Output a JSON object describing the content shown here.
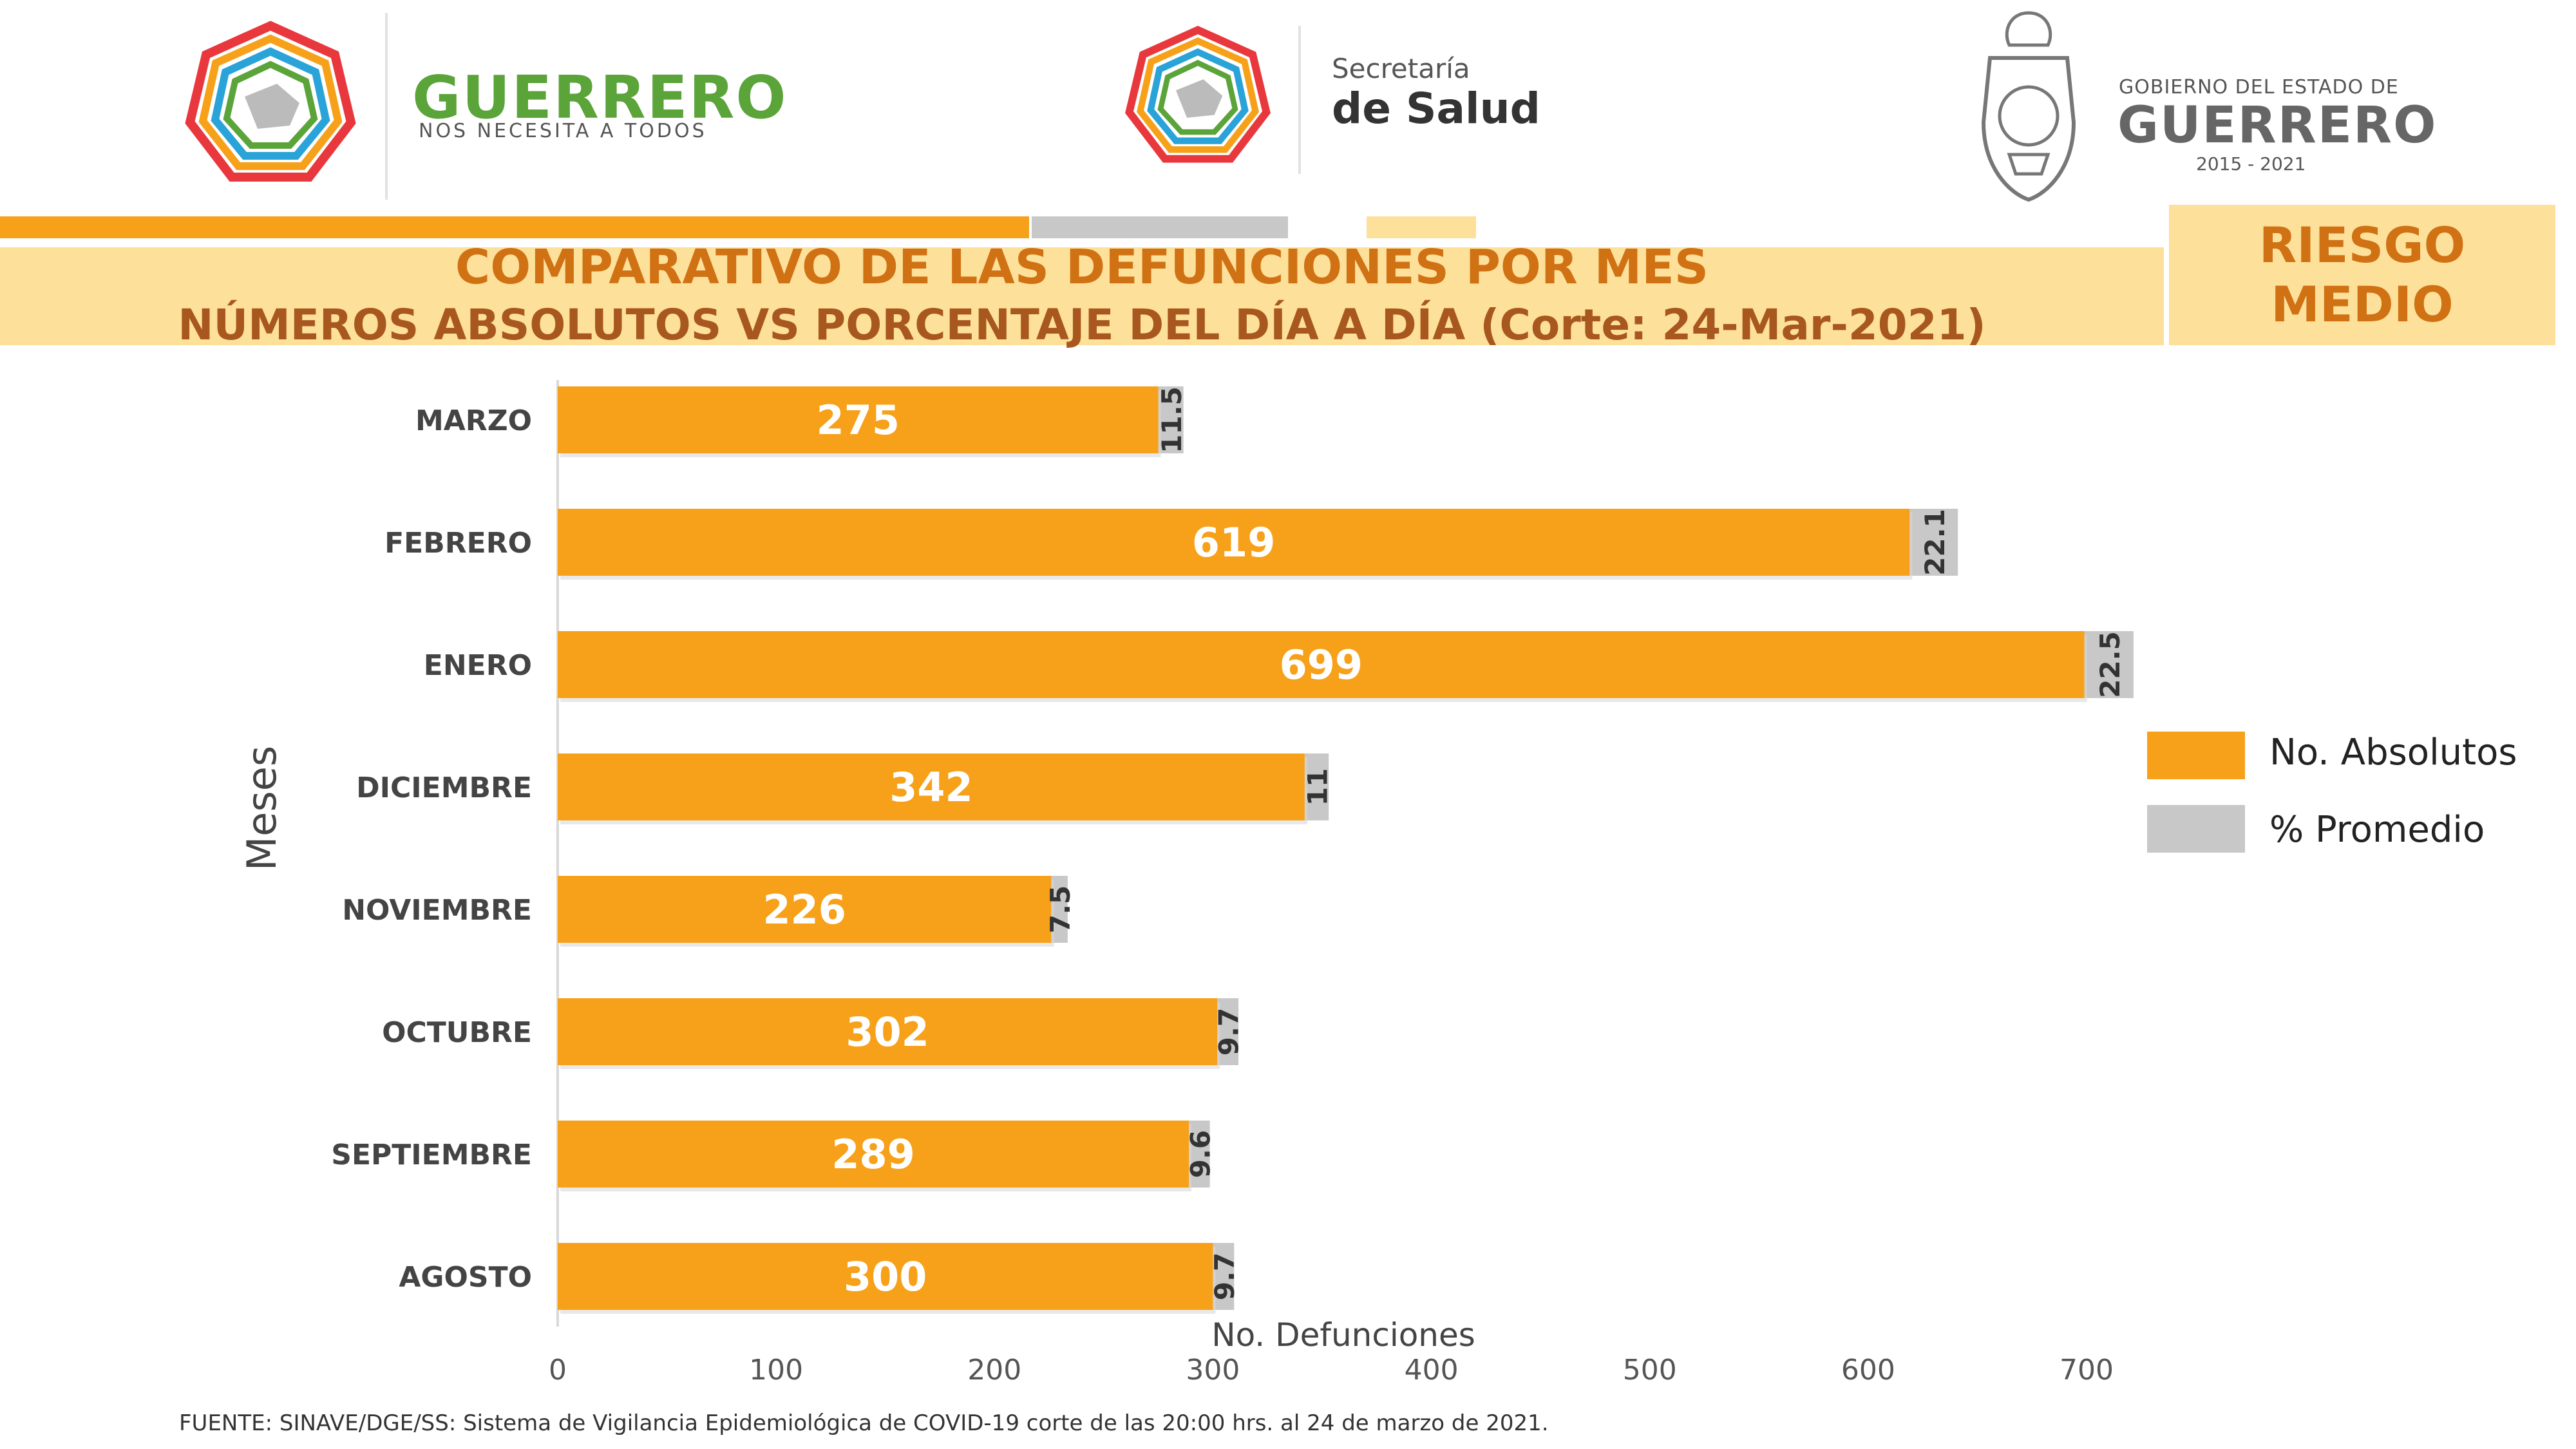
{
  "header": {
    "left_logo": {
      "name": "GUERRERO",
      "tagline": "NOS NECESITA A TODOS"
    },
    "center_logo": {
      "line1": "Secretaría",
      "line2": "de Salud"
    },
    "right_logo": {
      "line1": "GOBIERNO DEL ESTADO DE",
      "line2": "GUERRERO",
      "line3": "2015 - 2021"
    }
  },
  "title": {
    "main": "COMPARATIVO DE LAS DEFUNCIONES POR MES",
    "sub": "NÚMEROS ABSOLUTOS VS PORCENTAJE DEL DÍA A DÍA   (Corte: 24-Mar-2021)"
  },
  "risk": {
    "line1": "RIESGO",
    "line2": "MEDIO"
  },
  "chart_data": {
    "type": "bar",
    "orientation": "horizontal",
    "categories": [
      "MARZO",
      "FEBRERO",
      "ENERO",
      "DICIEMBRE",
      "NOVIEMBRE",
      "OCTUBRE",
      "SEPTIEMBRE",
      "AGOSTO"
    ],
    "series": [
      {
        "name": "No. Absolutos",
        "values": [
          275,
          619,
          699,
          342,
          226,
          302,
          289,
          300
        ],
        "color": "#f7a11a"
      },
      {
        "name": "% Promedio",
        "values": [
          11.5,
          22.1,
          22.5,
          11,
          7.5,
          9.7,
          9.6,
          9.7
        ],
        "color": "#c8c8c8"
      }
    ],
    "stacked": true,
    "xlabel": "No. Defunciones",
    "ylabel": "Meses",
    "xlim": [
      0,
      700
    ],
    "xticks": [
      0,
      100,
      200,
      300,
      400,
      500,
      600,
      700
    ],
    "grid": false,
    "legend_position": "right"
  },
  "source": "FUENTE: SINAVE/DGE/SS: Sistema de Vigilancia Epidemiológica de COVID-19 corte de las 20:00 hrs. al 24 de  marzo de 2021."
}
